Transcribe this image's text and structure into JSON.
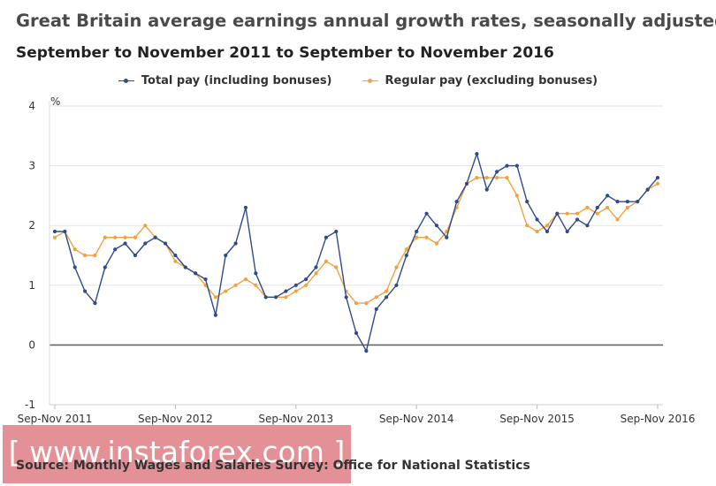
{
  "chart_data": {
    "type": "line",
    "title": "Great Britain average earnings annual growth rates, seasonally adjusted",
    "subtitle": "September to November 2011 to September to November 2016",
    "ylabel": "%",
    "ylim": [
      -1,
      4
    ],
    "yticks": [
      "4",
      "3",
      "2",
      "1",
      "0",
      "-1"
    ],
    "xticks": [
      "Sep-Nov 2011",
      "Sep-Nov 2012",
      "Sep-Nov 2013",
      "Sep-Nov 2014",
      "Sep-Nov 2015",
      "Sep-Nov 2016"
    ],
    "grid": true,
    "legend_position": "top",
    "series": [
      {
        "name": "Total pay (including bonuses)",
        "color": "#2f4b8a",
        "values": [
          1.9,
          1.9,
          1.3,
          0.9,
          0.7,
          1.3,
          1.6,
          1.7,
          1.5,
          1.7,
          1.8,
          1.7,
          1.5,
          1.3,
          1.2,
          1.1,
          0.5,
          1.5,
          1.7,
          2.3,
          1.2,
          0.8,
          0.8,
          0.9,
          1.0,
          1.1,
          1.3,
          1.8,
          1.9,
          0.8,
          0.2,
          -0.1,
          0.6,
          0.8,
          1.0,
          1.5,
          1.9,
          2.2,
          2.0,
          1.8,
          2.4,
          2.7,
          3.2,
          2.6,
          2.9,
          3.0,
          3.0,
          2.4,
          2.1,
          1.9,
          2.2,
          1.9,
          2.1,
          2.0,
          2.3,
          2.5,
          2.4,
          2.4,
          2.4,
          2.6,
          2.8
        ]
      },
      {
        "name": "Regular pay (excluding bonuses)",
        "color": "#f0a240",
        "values": [
          1.8,
          1.9,
          1.6,
          1.5,
          1.5,
          1.8,
          1.8,
          1.8,
          1.8,
          2.0,
          1.8,
          1.7,
          1.4,
          1.3,
          1.2,
          1.0,
          0.8,
          0.9,
          1.0,
          1.1,
          1.0,
          0.8,
          0.8,
          0.8,
          0.9,
          1.0,
          1.2,
          1.4,
          1.3,
          0.9,
          0.7,
          0.7,
          0.8,
          0.9,
          1.3,
          1.6,
          1.8,
          1.8,
          1.7,
          1.9,
          2.3,
          2.7,
          2.8,
          2.8,
          2.8,
          2.8,
          2.5,
          2.0,
          1.9,
          2.0,
          2.2,
          2.2,
          2.2,
          2.3,
          2.2,
          2.3,
          2.1,
          2.3,
          2.4,
          2.6,
          2.7
        ]
      }
    ],
    "source": "Source: Monthly Wages and Salaries Survey: Office for National Statistics"
  },
  "watermark": "[ www.instaforex.com ]"
}
